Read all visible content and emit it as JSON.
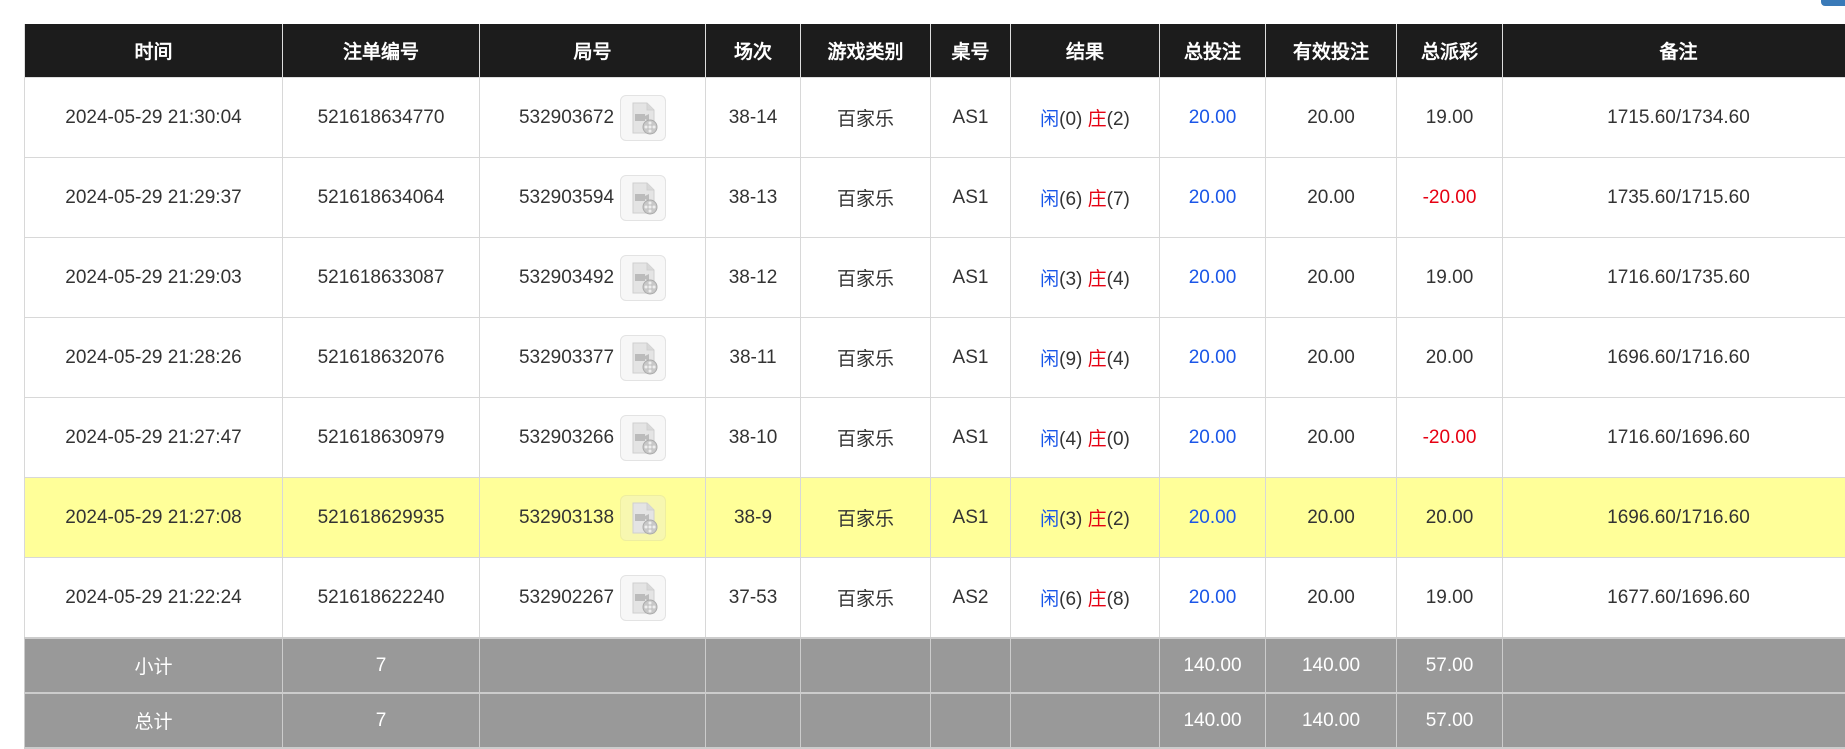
{
  "colors": {
    "header_bg": "#1c1c1c",
    "highlight_row": "#ffff99",
    "summary_bg": "#999999",
    "player": "#1a56e8",
    "banker": "#e60012",
    "negative": "#e60012"
  },
  "headers": [
    "时间",
    "注单编号",
    "局号",
    "场次",
    "游戏类别",
    "桌号",
    "结果",
    "总投注",
    "有效投注",
    "总派彩",
    "备注"
  ],
  "rows": [
    {
      "time": "2024-05-29 21:30:04",
      "bet_id": "521618634770",
      "round": "532903672",
      "session": "38-14",
      "game": "百家乐",
      "table": "AS1",
      "player_label": "闲",
      "player_score": "(0)",
      "banker_label": "庄",
      "banker_score": "(2)",
      "total_bet": "20.00",
      "valid_bet": "20.00",
      "payout": "19.00",
      "payout_negative": false,
      "note": "1715.60/1734.60",
      "highlight": false
    },
    {
      "time": "2024-05-29 21:29:37",
      "bet_id": "521618634064",
      "round": "532903594",
      "session": "38-13",
      "game": "百家乐",
      "table": "AS1",
      "player_label": "闲",
      "player_score": "(6)",
      "banker_label": "庄",
      "banker_score": "(7)",
      "total_bet": "20.00",
      "valid_bet": "20.00",
      "payout": "-20.00",
      "payout_negative": true,
      "note": "1735.60/1715.60",
      "highlight": false
    },
    {
      "time": "2024-05-29 21:29:03",
      "bet_id": "521618633087",
      "round": "532903492",
      "session": "38-12",
      "game": "百家乐",
      "table": "AS1",
      "player_label": "闲",
      "player_score": "(3)",
      "banker_label": "庄",
      "banker_score": "(4)",
      "total_bet": "20.00",
      "valid_bet": "20.00",
      "payout": "19.00",
      "payout_negative": false,
      "note": "1716.60/1735.60",
      "highlight": false
    },
    {
      "time": "2024-05-29 21:28:26",
      "bet_id": "521618632076",
      "round": "532903377",
      "session": "38-11",
      "game": "百家乐",
      "table": "AS1",
      "player_label": "闲",
      "player_score": "(9)",
      "banker_label": "庄",
      "banker_score": "(4)",
      "total_bet": "20.00",
      "valid_bet": "20.00",
      "payout": "20.00",
      "payout_negative": false,
      "note": "1696.60/1716.60",
      "highlight": false
    },
    {
      "time": "2024-05-29 21:27:47",
      "bet_id": "521618630979",
      "round": "532903266",
      "session": "38-10",
      "game": "百家乐",
      "table": "AS1",
      "player_label": "闲",
      "player_score": "(4)",
      "banker_label": "庄",
      "banker_score": "(0)",
      "total_bet": "20.00",
      "valid_bet": "20.00",
      "payout": "-20.00",
      "payout_negative": true,
      "note": "1716.60/1696.60",
      "highlight": false
    },
    {
      "time": "2024-05-29 21:27:08",
      "bet_id": "521618629935",
      "round": "532903138",
      "session": "38-9",
      "game": "百家乐",
      "table": "AS1",
      "player_label": "闲",
      "player_score": "(3)",
      "banker_label": "庄",
      "banker_score": "(2)",
      "total_bet": "20.00",
      "valid_bet": "20.00",
      "payout": "20.00",
      "payout_negative": false,
      "note": "1696.60/1716.60",
      "highlight": true
    },
    {
      "time": "2024-05-29 21:22:24",
      "bet_id": "521618622240",
      "round": "532902267",
      "session": "37-53",
      "game": "百家乐",
      "table": "AS2",
      "player_label": "闲",
      "player_score": "(6)",
      "banker_label": "庄",
      "banker_score": "(8)",
      "total_bet": "20.00",
      "valid_bet": "20.00",
      "payout": "19.00",
      "payout_negative": false,
      "note": "1677.60/1696.60",
      "highlight": false
    }
  ],
  "summary": [
    {
      "label": "小计",
      "count": "7",
      "total_bet": "140.00",
      "valid_bet": "140.00",
      "payout": "57.00"
    },
    {
      "label": "总计",
      "count": "7",
      "total_bet": "140.00",
      "valid_bet": "140.00",
      "payout": "57.00"
    }
  ],
  "icons": {
    "replay": "video-file-icon"
  }
}
